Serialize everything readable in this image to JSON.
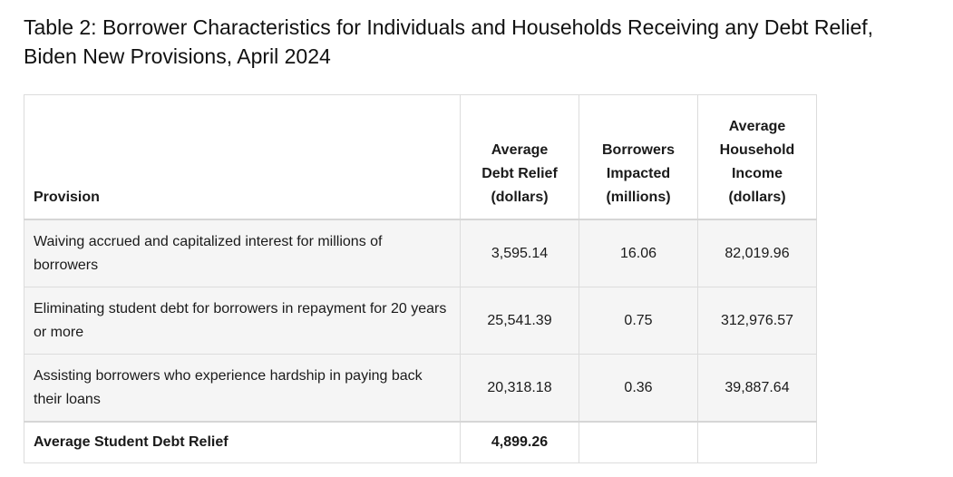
{
  "title_line1": "Table 2: Borrower Characteristics for Individuals and Households Receiving any Debt Relief,",
  "title_line2": "Biden New Provisions, April 2024",
  "columns": [
    {
      "lines": [
        "Provision"
      ]
    },
    {
      "lines": [
        "Average",
        "Debt Relief",
        "(dollars)"
      ]
    },
    {
      "lines": [
        "Borrowers",
        "Impacted",
        "(millions)"
      ]
    },
    {
      "lines": [
        "Average",
        "Household",
        "Income",
        "(dollars)"
      ]
    }
  ],
  "rows": [
    {
      "provision": "Waiving accrued and capitalized interest for millions of borrowers",
      "avg_debt_relief": "3,595.14",
      "borrowers_impacted": "16.06",
      "avg_household_income": "82,019.96"
    },
    {
      "provision": "Eliminating student debt for borrowers in repayment for 20 years or more",
      "avg_debt_relief": "25,541.39",
      "borrowers_impacted": "0.75",
      "avg_household_income": "312,976.57"
    },
    {
      "provision": "Assisting borrowers who experience hardship in paying back their loans",
      "avg_debt_relief": "20,318.18",
      "borrowers_impacted": "0.36",
      "avg_household_income": "39,887.64"
    }
  ],
  "total": {
    "label": "Average Student Debt Relief",
    "avg_debt_relief": "4,899.26",
    "borrowers_impacted": "",
    "avg_household_income": ""
  },
  "colors": {
    "row_background": "#f5f5f5",
    "border": "#dcdcdc",
    "text": "#1a1a1a"
  }
}
